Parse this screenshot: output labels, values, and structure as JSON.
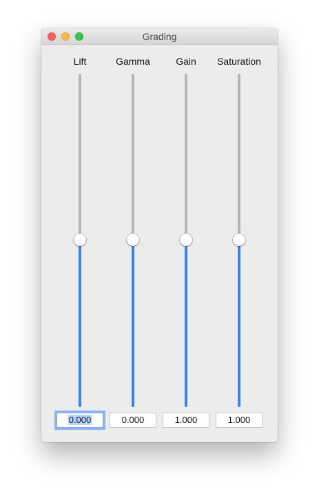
{
  "window": {
    "title": "Grading"
  },
  "sliders": [
    {
      "label": "Lift",
      "value": "0.000",
      "fraction": 0.5
    },
    {
      "label": "Gamma",
      "value": "0.000",
      "fraction": 0.5
    },
    {
      "label": "Gain",
      "value": "1.000",
      "fraction": 0.5
    },
    {
      "label": "Saturation",
      "value": "1.000",
      "fraction": 0.5
    }
  ],
  "colors": {
    "accent": "#3b82f0",
    "track": "#b5b5b5",
    "focus_ring": "#8bb4f3"
  },
  "icons": {
    "close": "close-icon",
    "minimize": "minimize-icon",
    "maximize": "maximize-icon"
  }
}
